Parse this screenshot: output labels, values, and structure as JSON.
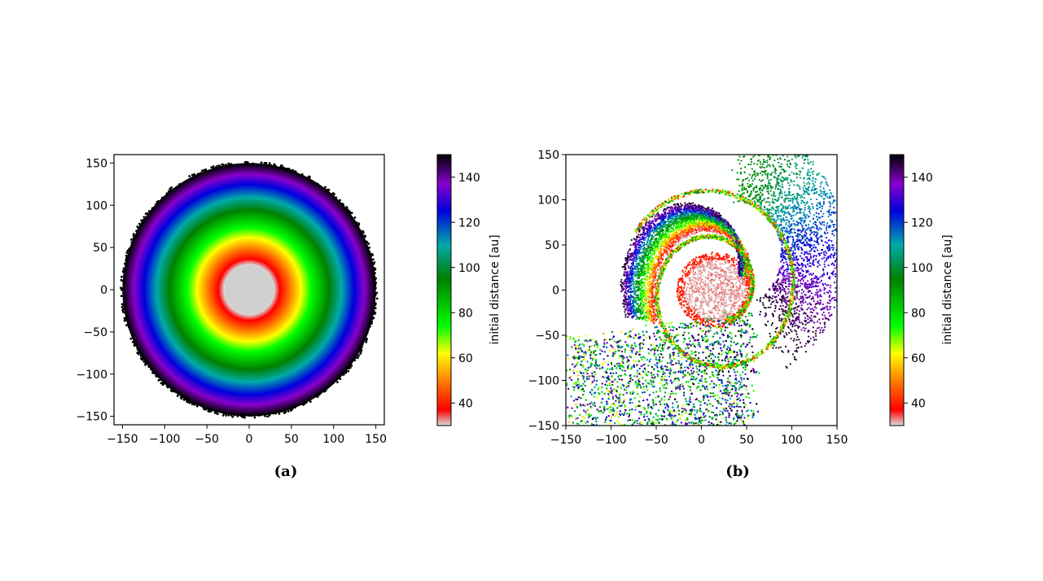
{
  "chart_data": [
    {
      "type": "scatter",
      "panel_label": "(a)",
      "xlim": [
        -160,
        160
      ],
      "ylim": [
        -160,
        160
      ],
      "xticks": [
        -150,
        -100,
        -50,
        0,
        50,
        100,
        150
      ],
      "yticks": [
        -150,
        -100,
        -50,
        0,
        50,
        100,
        150
      ],
      "grid": false,
      "description_values": {
        "disk_inner_radius": 30,
        "disk_outer_radius": 150,
        "color_variable": "initial distance"
      },
      "colorbar": {
        "label": "initial distance [au]",
        "range": [
          30,
          150
        ],
        "ticks": [
          40,
          60,
          80,
          100,
          120,
          140
        ]
      }
    },
    {
      "type": "scatter",
      "panel_label": "(b)",
      "xlim": [
        -150,
        150
      ],
      "ylim": [
        -150,
        150
      ],
      "xticks": [
        -150,
        -100,
        -50,
        0,
        50,
        100,
        150
      ],
      "yticks": [
        -150,
        -100,
        -50,
        0,
        50,
        100,
        150
      ],
      "grid": false,
      "colorbar": {
        "label": "initial distance [au]",
        "range": [
          30,
          150
        ],
        "ticks": [
          40,
          60,
          80,
          100,
          120,
          140
        ]
      }
    }
  ],
  "colormap": {
    "stops": [
      [
        30,
        "#d9d9d9"
      ],
      [
        37,
        "#ff0000"
      ],
      [
        50,
        "#ff8000"
      ],
      [
        62,
        "#ffff00"
      ],
      [
        74,
        "#00ff00"
      ],
      [
        95,
        "#008000"
      ],
      [
        110,
        "#00aaaa"
      ],
      [
        125,
        "#0000dd"
      ],
      [
        137,
        "#8800cc"
      ],
      [
        150,
        "#000000"
      ]
    ]
  }
}
